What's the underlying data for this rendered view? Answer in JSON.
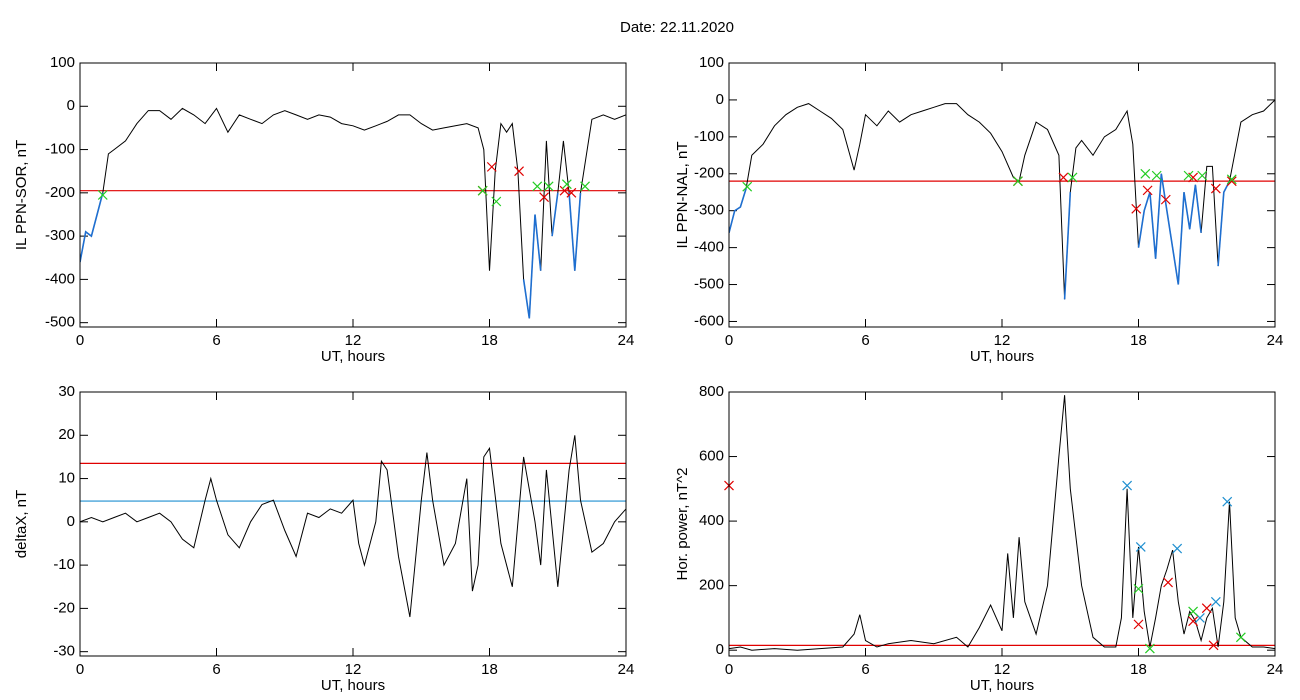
{
  "title": "Date:  22.11.2020",
  "chart_data": [
    {
      "type": "line",
      "xlabel": "UT, hours",
      "ylabel": "IL PPN-SOR, nT",
      "xlim": [
        0,
        24
      ],
      "xticks": [
        0,
        6,
        12,
        18,
        24
      ],
      "ylim": [
        -510,
        100
      ],
      "yticks": [
        100,
        0,
        -100,
        -200,
        -300,
        -400,
        -500
      ],
      "x": [
        0,
        0.25,
        0.5,
        0.75,
        1,
        1.25,
        1.5,
        2,
        2.5,
        3,
        3.5,
        4,
        4.5,
        5,
        5.5,
        6,
        6.5,
        7,
        7.5,
        8,
        8.5,
        9,
        9.5,
        10,
        10.5,
        11,
        11.5,
        12,
        12.5,
        13,
        13.5,
        14,
        14.5,
        15,
        15.5,
        16,
        16.5,
        17,
        17.5,
        17.75,
        18,
        18.25,
        18.5,
        18.75,
        19,
        19.25,
        19.5,
        19.75,
        20,
        20.25,
        20.5,
        20.75,
        21,
        21.25,
        21.5,
        21.75,
        22,
        22.5,
        23,
        23.5,
        24
      ],
      "series": [
        {
          "color": "#000000",
          "values": [
            -360,
            -290,
            -300,
            -250,
            -200,
            -110,
            -100,
            -80,
            -40,
            -10,
            -10,
            -30,
            -5,
            -20,
            -40,
            -5,
            -60,
            -20,
            -30,
            -40,
            -20,
            -10,
            -20,
            -30,
            -20,
            -25,
            -40,
            -45,
            -55,
            -45,
            -35,
            -20,
            -20,
            -40,
            -55,
            -50,
            -45,
            -40,
            -50,
            -100,
            -380,
            -150,
            -40,
            -60,
            -40,
            -150,
            -400,
            -490,
            -250,
            -380,
            -80,
            -300,
            -200,
            -80,
            -200,
            -380,
            -200,
            -30,
            -20,
            -30,
            -20
          ]
        },
        {
          "color": "#1f6fd0",
          "values": [
            -360,
            -290,
            -300,
            -250,
            -200,
            null,
            null,
            null,
            null,
            null,
            null,
            null,
            null,
            null,
            null,
            null,
            null,
            null,
            null,
            null,
            null,
            null,
            null,
            null,
            null,
            null,
            null,
            null,
            null,
            null,
            null,
            null,
            null,
            null,
            null,
            null,
            null,
            null,
            null,
            null,
            -380,
            null,
            null,
            null,
            null,
            null,
            -400,
            -490,
            -250,
            -380,
            null,
            -300,
            -200,
            null,
            -200,
            -380,
            -200,
            null,
            null,
            null,
            null
          ]
        }
      ],
      "hlines": [
        {
          "value": -195,
          "color": "#e00000"
        }
      ],
      "markers": [
        {
          "color": "#e00000",
          "x": [
            17.7,
            18.1,
            19.3,
            20.4,
            21.3,
            21.6
          ],
          "y": [
            -195,
            -140,
            -150,
            -210,
            -195,
            -200
          ]
        },
        {
          "color": "#22cc22",
          "x": [
            1,
            17.7,
            18.3,
            20.1,
            20.6,
            21.4,
            22.2
          ],
          "y": [
            -205,
            -195,
            -220,
            -185,
            -185,
            -180,
            -185
          ]
        }
      ]
    },
    {
      "type": "line",
      "xlabel": "UT, hours",
      "ylabel": "IL PPN-NAL, nT",
      "xlim": [
        0,
        24
      ],
      "xticks": [
        0,
        6,
        12,
        18,
        24
      ],
      "ylim": [
        -615,
        100
      ],
      "yticks": [
        100,
        0,
        -100,
        -200,
        -300,
        -400,
        -500,
        -600
      ],
      "x": [
        0,
        0.25,
        0.5,
        0.75,
        1,
        1.5,
        2,
        2.5,
        3,
        3.5,
        4,
        4.5,
        5,
        5.5,
        5.75,
        6,
        6.5,
        7,
        7.5,
        8,
        8.5,
        9,
        9.5,
        10,
        10.5,
        11,
        11.5,
        12,
        12.5,
        12.75,
        13,
        13.5,
        14,
        14.5,
        14.75,
        15,
        15.25,
        15.5,
        16,
        16.5,
        17,
        17.5,
        17.75,
        18,
        18.25,
        18.5,
        18.75,
        19,
        19.25,
        19.5,
        19.75,
        20,
        20.25,
        20.5,
        20.75,
        21,
        21.25,
        21.5,
        21.75,
        22,
        22.5,
        23,
        23.5,
        24
      ],
      "series": [
        {
          "color": "#000000",
          "values": [
            -360,
            -300,
            -290,
            -240,
            -150,
            -120,
            -70,
            -40,
            -20,
            -10,
            -30,
            -50,
            -80,
            -190,
            -120,
            -40,
            -70,
            -30,
            -60,
            -40,
            -30,
            -20,
            -10,
            -10,
            -40,
            -60,
            -90,
            -140,
            -210,
            -220,
            -150,
            -60,
            -80,
            -150,
            -540,
            -250,
            -130,
            -110,
            -150,
            -100,
            -80,
            -30,
            -120,
            -400,
            -300,
            -250,
            -430,
            -200,
            -300,
            -400,
            -500,
            -250,
            -350,
            -230,
            -360,
            -180,
            -180,
            -450,
            -250,
            -220,
            -60,
            -40,
            -30,
            0
          ]
        },
        {
          "color": "#1f6fd0",
          "values": [
            -360,
            -300,
            -290,
            -240,
            null,
            null,
            null,
            null,
            null,
            null,
            null,
            null,
            null,
            null,
            null,
            null,
            null,
            null,
            null,
            null,
            null,
            null,
            null,
            null,
            null,
            null,
            null,
            null,
            null,
            null,
            null,
            null,
            null,
            null,
            -540,
            -250,
            null,
            null,
            null,
            null,
            null,
            null,
            null,
            -400,
            -300,
            -250,
            -430,
            -200,
            -300,
            -400,
            -500,
            -250,
            -350,
            -230,
            -360,
            null,
            null,
            -450,
            -250,
            -220,
            null,
            null,
            null,
            null
          ]
        }
      ],
      "hlines": [
        {
          "value": -220,
          "color": "#e00000"
        }
      ],
      "markers": [
        {
          "color": "#e00000",
          "x": [
            12.7,
            14.7,
            17.9,
            18.4,
            19.2,
            20.4,
            21.4,
            22.1
          ],
          "y": [
            -220,
            -210,
            -295,
            -245,
            -270,
            -210,
            -240,
            -220
          ]
        },
        {
          "color": "#22cc22",
          "x": [
            0.8,
            12.7,
            15.1,
            18.3,
            18.8,
            20.2,
            20.8,
            22.1
          ],
          "y": [
            -235,
            -220,
            -210,
            -200,
            -205,
            -205,
            -205,
            -215
          ]
        }
      ]
    },
    {
      "type": "line",
      "xlabel": "UT, hours",
      "ylabel": "deltaX, nT",
      "xlim": [
        0,
        24
      ],
      "xticks": [
        0,
        6,
        12,
        18,
        24
      ],
      "ylim": [
        -31,
        30
      ],
      "yticks": [
        30,
        20,
        10,
        0,
        -10,
        -20,
        -30
      ],
      "x": [
        0,
        0.5,
        1,
        1.5,
        2,
        2.5,
        3,
        3.5,
        4,
        4.5,
        5,
        5.5,
        5.75,
        6,
        6.5,
        7,
        7.5,
        8,
        8.5,
        9,
        9.5,
        10,
        10.5,
        11,
        11.5,
        12,
        12.25,
        12.5,
        13,
        13.25,
        13.5,
        14,
        14.5,
        15,
        15.25,
        15.5,
        16,
        16.5,
        17,
        17.25,
        17.5,
        17.75,
        18,
        18.5,
        19,
        19.5,
        20,
        20.25,
        20.5,
        21,
        21.5,
        21.75,
        22,
        22.5,
        23,
        23.5,
        24
      ],
      "series": [
        {
          "color": "#000000",
          "values": [
            0,
            1,
            0,
            1,
            2,
            0,
            1,
            2,
            0,
            -4,
            -6,
            5,
            10,
            5,
            -3,
            -6,
            0,
            4,
            5,
            -2,
            -8,
            2,
            1,
            3,
            2,
            5,
            -5,
            -10,
            0,
            14,
            12,
            -8,
            -22,
            5,
            16,
            5,
            -10,
            -5,
            10,
            -16,
            -10,
            15,
            17,
            -5,
            -15,
            15,
            0,
            -10,
            12,
            -15,
            12,
            20,
            5,
            -7,
            -5,
            0,
            3
          ]
        }
      ],
      "hlines": [
        {
          "value": 13.5,
          "color": "#e00000"
        },
        {
          "value": 4.8,
          "color": "#1f8fd0"
        }
      ],
      "markers": []
    },
    {
      "type": "line",
      "xlabel": "UT, hours",
      "ylabel": "Hor. power, nT^2",
      "xlim": [
        0,
        24
      ],
      "xticks": [
        0,
        6,
        12,
        18,
        24
      ],
      "ylim": [
        -18,
        800
      ],
      "yticks": [
        0,
        200,
        400,
        600,
        800
      ],
      "x": [
        0,
        0.5,
        1,
        2,
        3,
        4,
        5,
        5.5,
        5.75,
        6,
        6.5,
        7,
        8,
        9,
        10,
        10.5,
        11,
        11.5,
        12,
        12.25,
        12.5,
        12.75,
        13,
        13.5,
        14,
        14.25,
        14.5,
        14.75,
        15,
        15.5,
        16,
        16.5,
        17,
        17.25,
        17.5,
        17.75,
        18,
        18.25,
        18.5,
        18.75,
        19,
        19.25,
        19.5,
        19.75,
        20,
        20.25,
        20.5,
        20.75,
        21,
        21.25,
        21.5,
        21.75,
        22,
        22.25,
        22.5,
        23,
        23.5,
        24
      ],
      "series": [
        {
          "color": "#000000",
          "values": [
            5,
            10,
            0,
            5,
            0,
            5,
            10,
            50,
            110,
            30,
            10,
            20,
            30,
            20,
            40,
            10,
            70,
            140,
            60,
            300,
            100,
            350,
            150,
            50,
            200,
            400,
            600,
            790,
            500,
            200,
            40,
            10,
            10,
            100,
            500,
            100,
            320,
            120,
            10,
            100,
            200,
            250,
            310,
            150,
            50,
            120,
            90,
            30,
            100,
            130,
            10,
            150,
            460,
            100,
            40,
            10,
            10,
            5
          ]
        }
      ],
      "hlines": [
        {
          "value": 15,
          "color": "#e00000"
        }
      ],
      "markers": [
        {
          "color": "#1f8fd0",
          "x": [
            17.5,
            18.1,
            19.7,
            20.7,
            21.4,
            21.9
          ],
          "y": [
            510,
            320,
            315,
            100,
            150,
            460
          ]
        },
        {
          "color": "#e00000",
          "x": [
            0,
            18,
            19.3,
            20.4,
            21,
            21.3
          ],
          "y": [
            510,
            80,
            210,
            90,
            130,
            15
          ]
        },
        {
          "color": "#22cc22",
          "x": [
            18,
            18.5,
            20.4,
            22.5
          ],
          "y": [
            190,
            5,
            120,
            40
          ]
        }
      ]
    }
  ]
}
